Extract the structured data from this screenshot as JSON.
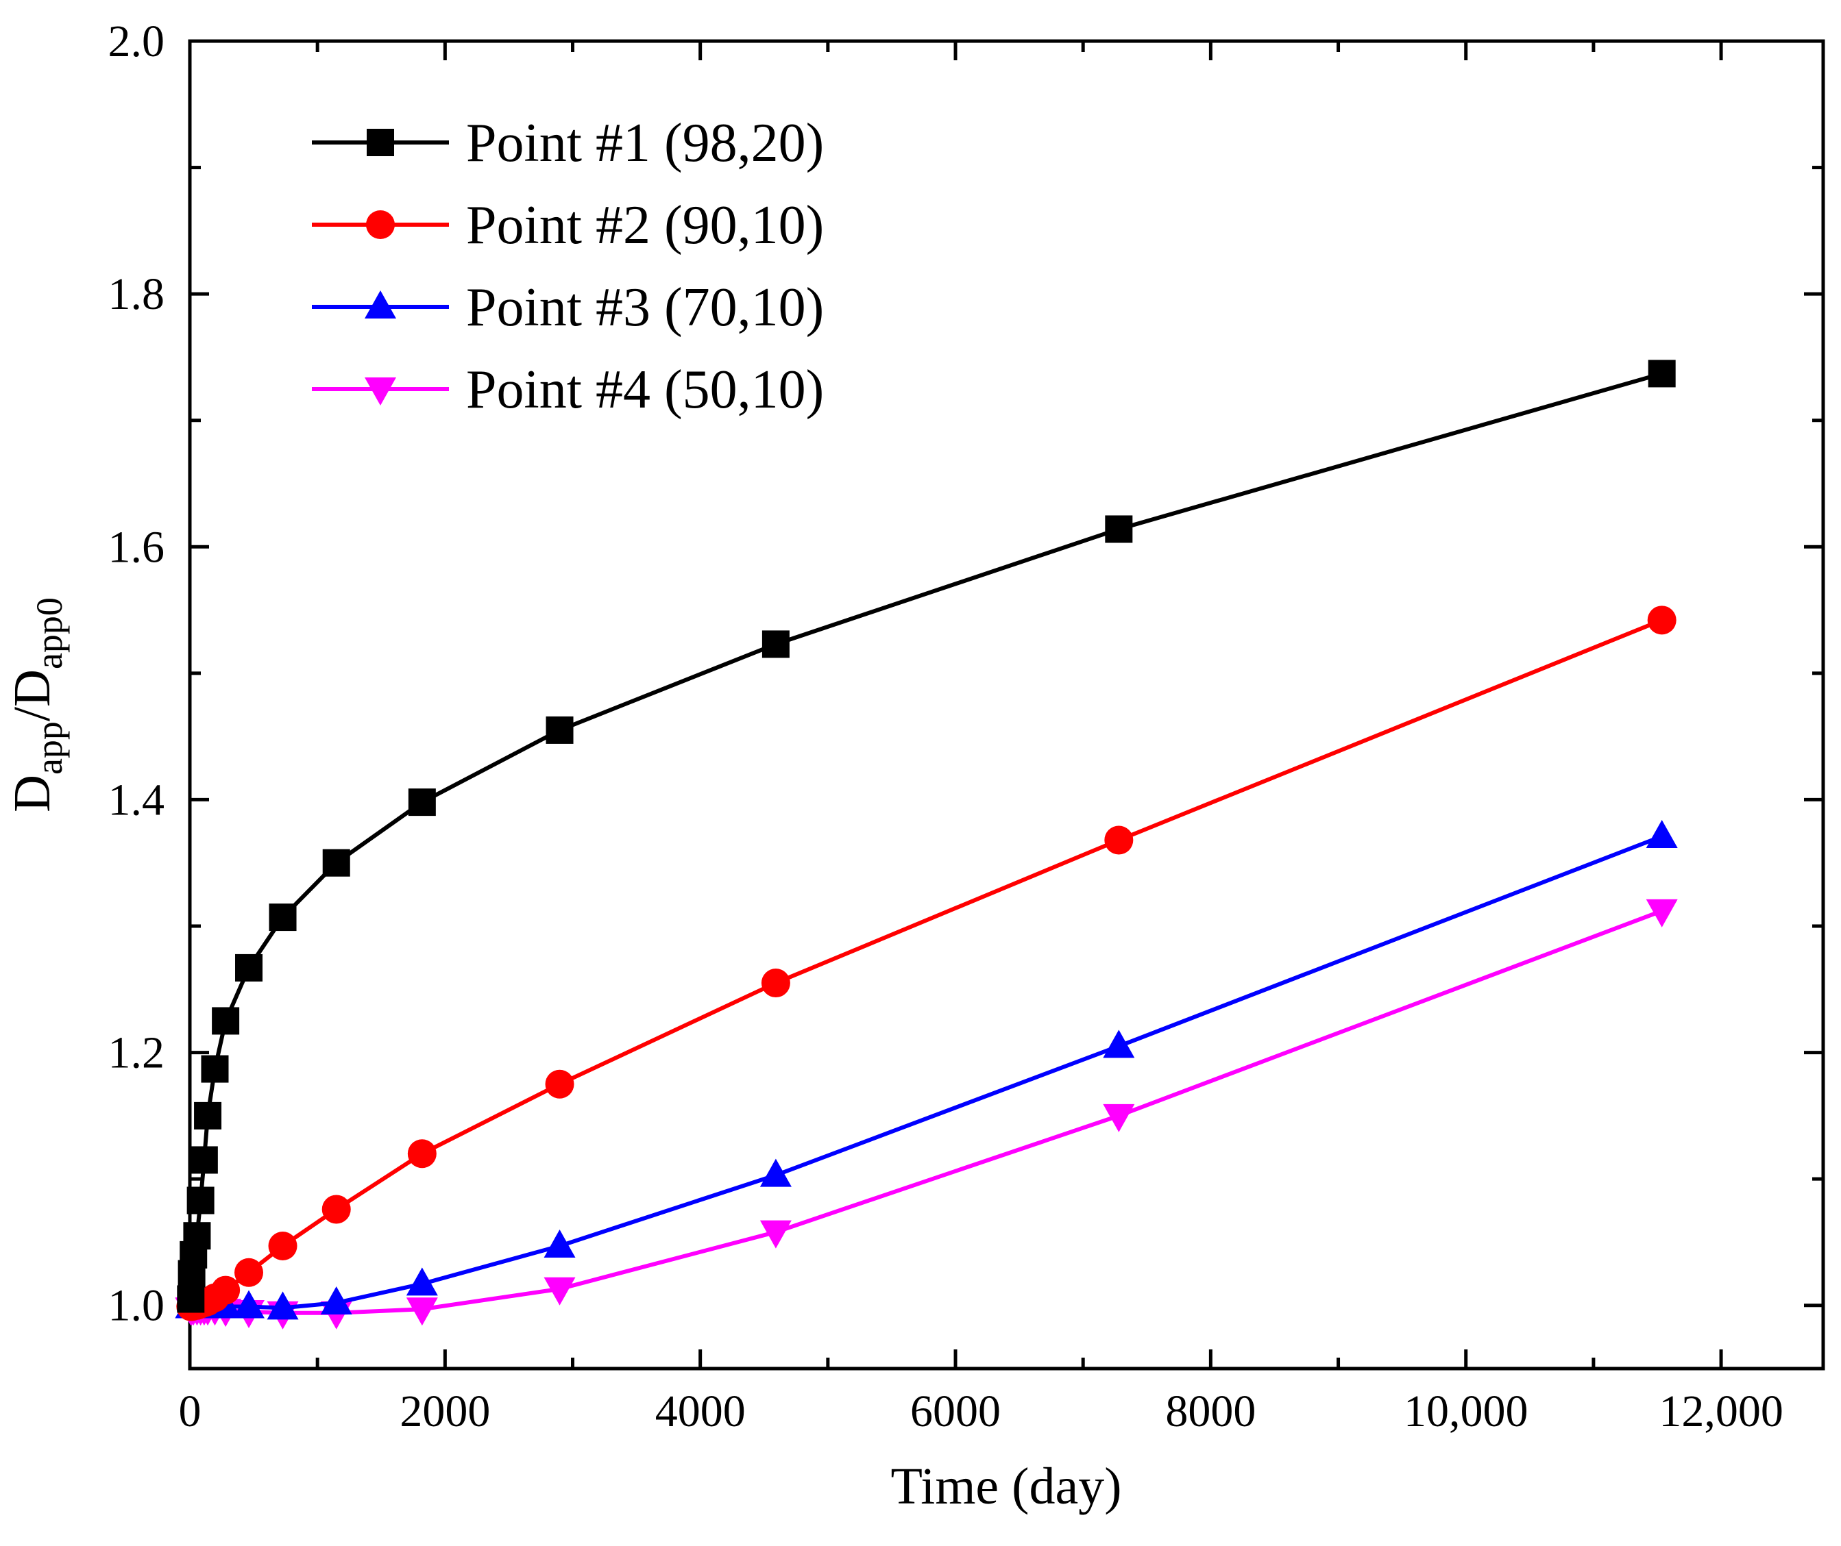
{
  "chart_data": {
    "type": "line",
    "title": "",
    "xlabel": "Time (day)",
    "ylabel": {
      "main": "D",
      "sub1": "app",
      "slash": "/",
      "main2": "D",
      "sub2": "app0"
    },
    "xlim": [
      0,
      12800
    ],
    "ylim": [
      0.95,
      2.0
    ],
    "x_ticks": [
      0,
      2000,
      4000,
      6000,
      8000,
      10000,
      12000
    ],
    "x_tick_labels": [
      "0",
      "2000",
      "4000",
      "6000",
      "8000",
      "10,000",
      "12,000"
    ],
    "y_ticks": [
      1.0,
      1.2,
      1.4,
      1.6,
      1.8,
      2.0
    ],
    "y_tick_labels": [
      "1.0",
      "1.2",
      "1.4",
      "1.6",
      "1.8",
      "2.0"
    ],
    "legend_position": "top-left",
    "series": [
      {
        "name": "Point #1 (98,20)",
        "color": "#000000",
        "marker": "square",
        "x": [
          7,
          14,
          28,
          56,
          84,
          112,
          140,
          196,
          280,
          462,
          728,
          1148,
          1820,
          2898,
          4592,
          7280,
          11536
        ],
        "y": [
          1.005,
          1.025,
          1.04,
          1.055,
          1.083,
          1.115,
          1.15,
          1.187,
          1.225,
          1.267,
          1.307,
          1.35,
          1.398,
          1.455,
          1.523,
          1.614,
          1.737
        ]
      },
      {
        "name": "Point #2 (90,10)",
        "color": "#ff0000",
        "marker": "circle",
        "x": [
          7,
          14,
          28,
          56,
          84,
          112,
          140,
          196,
          280,
          462,
          728,
          1148,
          1820,
          2898,
          4592,
          7280,
          11536
        ],
        "y": [
          0.999,
          0.999,
          1.0,
          1.0,
          1.001,
          1.002,
          1.003,
          1.006,
          1.012,
          1.026,
          1.047,
          1.076,
          1.12,
          1.175,
          1.255,
          1.368,
          1.542
        ]
      },
      {
        "name": "Point #3 (70,10)",
        "color": "#0000ff",
        "marker": "triangle-up",
        "x": [
          7,
          14,
          28,
          56,
          84,
          112,
          140,
          196,
          280,
          462,
          728,
          1148,
          1820,
          2898,
          4592,
          7280,
          11536
        ],
        "y": [
          0.999,
          0.999,
          0.999,
          0.999,
          0.999,
          0.999,
          0.999,
          0.999,
          0.999,
          0.999,
          0.998,
          1.002,
          1.017,
          1.047,
          1.103,
          1.205,
          1.371
        ]
      },
      {
        "name": "Point #4 (50,10)",
        "color": "#ff00ff",
        "marker": "triangle-down",
        "x": [
          7,
          14,
          28,
          56,
          84,
          112,
          140,
          196,
          280,
          462,
          728,
          1148,
          1820,
          2898,
          4592,
          7280,
          11536
        ],
        "y": [
          0.997,
          0.997,
          0.997,
          0.997,
          0.997,
          0.997,
          0.997,
          0.997,
          0.996,
          0.995,
          0.994,
          0.994,
          0.997,
          1.013,
          1.058,
          1.15,
          1.312
        ]
      }
    ]
  }
}
